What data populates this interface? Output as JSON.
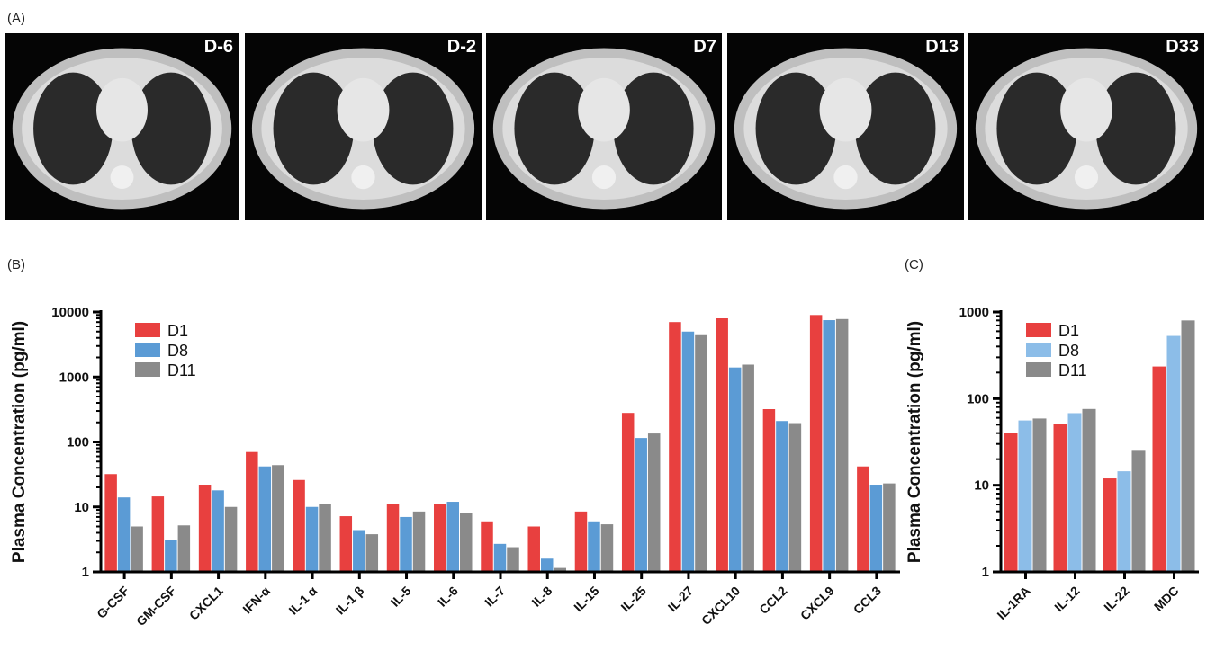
{
  "panel_a": {
    "letter": "(A)",
    "scans": [
      {
        "label": "D-6"
      },
      {
        "label": "D-2"
      },
      {
        "label": "D7"
      },
      {
        "label": "D13"
      },
      {
        "label": "D33"
      }
    ]
  },
  "chart_data": [
    {
      "id": "B",
      "panel_letter": "(B)",
      "type": "bar",
      "scale": "log",
      "ylabel": "Plasma Concentration (pg/ml)",
      "ylim": [
        1,
        10000
      ],
      "yticks": [
        1,
        10,
        100,
        1000,
        10000
      ],
      "legend_position": "top-left",
      "categories": [
        "G-CSF",
        "GM-CSF",
        "CXCL1",
        "IFN-α",
        "IL-1 α",
        "IL-1 β",
        "IL-5",
        "IL-6",
        "IL-7",
        "IL-8",
        "IL-15",
        "IL-25",
        "IL-27",
        "CXCL10",
        "CCL2",
        "CXCL9",
        "CCL3"
      ],
      "series": [
        {
          "name": "D1",
          "color": "#e8403f",
          "values": [
            32,
            14.5,
            22,
            70,
            26,
            7.2,
            11,
            11,
            6,
            5,
            8.5,
            280,
            7000,
            8000,
            320,
            9000,
            42
          ]
        },
        {
          "name": "D8",
          "color": "#5b9bd5",
          "values": [
            14,
            3.1,
            18,
            42,
            10,
            4.4,
            7,
            12,
            2.7,
            1.6,
            6,
            115,
            5000,
            1400,
            210,
            7500,
            22
          ]
        },
        {
          "name": "D11",
          "color": "#8a8a8a",
          "values": [
            5,
            5.2,
            10,
            44,
            11,
            3.8,
            8.5,
            8,
            2.4,
            1.15,
            5.4,
            135,
            4400,
            1550,
            195,
            7800,
            23
          ]
        }
      ]
    },
    {
      "id": "C",
      "panel_letter": "(C)",
      "type": "bar",
      "scale": "log",
      "ylabel": "Plasma Concentration (pg/ml)",
      "ylim": [
        1,
        1000
      ],
      "yticks": [
        1,
        10,
        100,
        1000
      ],
      "legend_position": "top-left",
      "categories": [
        "IL-1RA",
        "IL-12",
        "IL-22",
        "MDC"
      ],
      "series": [
        {
          "name": "D1",
          "color": "#e8403f",
          "values": [
            40,
            51,
            12,
            235
          ]
        },
        {
          "name": "D8",
          "color": "#8cbde8",
          "values": [
            56,
            68,
            14.5,
            530
          ]
        },
        {
          "name": "D11",
          "color": "#8a8a8a",
          "values": [
            59,
            76,
            25,
            800
          ]
        }
      ]
    }
  ]
}
